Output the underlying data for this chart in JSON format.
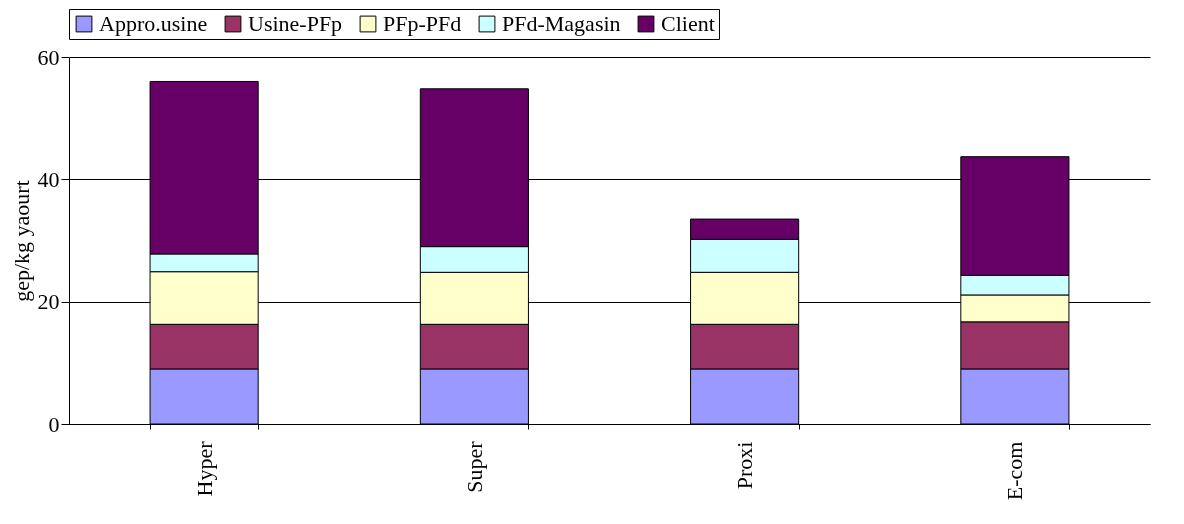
{
  "chart_data": {
    "type": "bar",
    "stacked": true,
    "ylabel": "gep/kg yaourt",
    "categories": [
      "Hyper",
      "Super",
      "Proxi",
      "E-com"
    ],
    "series": [
      {
        "name": "Appro.usine",
        "color": "#9999ff",
        "values": [
          9.0,
          9.0,
          9.0,
          9.0
        ]
      },
      {
        "name": "Usine-PFp",
        "color": "#993366",
        "values": [
          7.3,
          7.3,
          7.3,
          7.7
        ]
      },
      {
        "name": "PFp-PFd",
        "color": "#ffffcc",
        "values": [
          8.6,
          8.5,
          8.5,
          4.4
        ]
      },
      {
        "name": "PFd-Magasin",
        "color": "#ccffff",
        "values": [
          2.9,
          4.2,
          5.4,
          3.2
        ]
      },
      {
        "name": "Client",
        "color": "#660066",
        "values": [
          28.2,
          25.8,
          3.3,
          19.4
        ]
      }
    ],
    "ylim": [
      0,
      60
    ],
    "yticks": [
      0,
      20,
      40,
      60
    ],
    "grid": "y",
    "legend": "top"
  }
}
